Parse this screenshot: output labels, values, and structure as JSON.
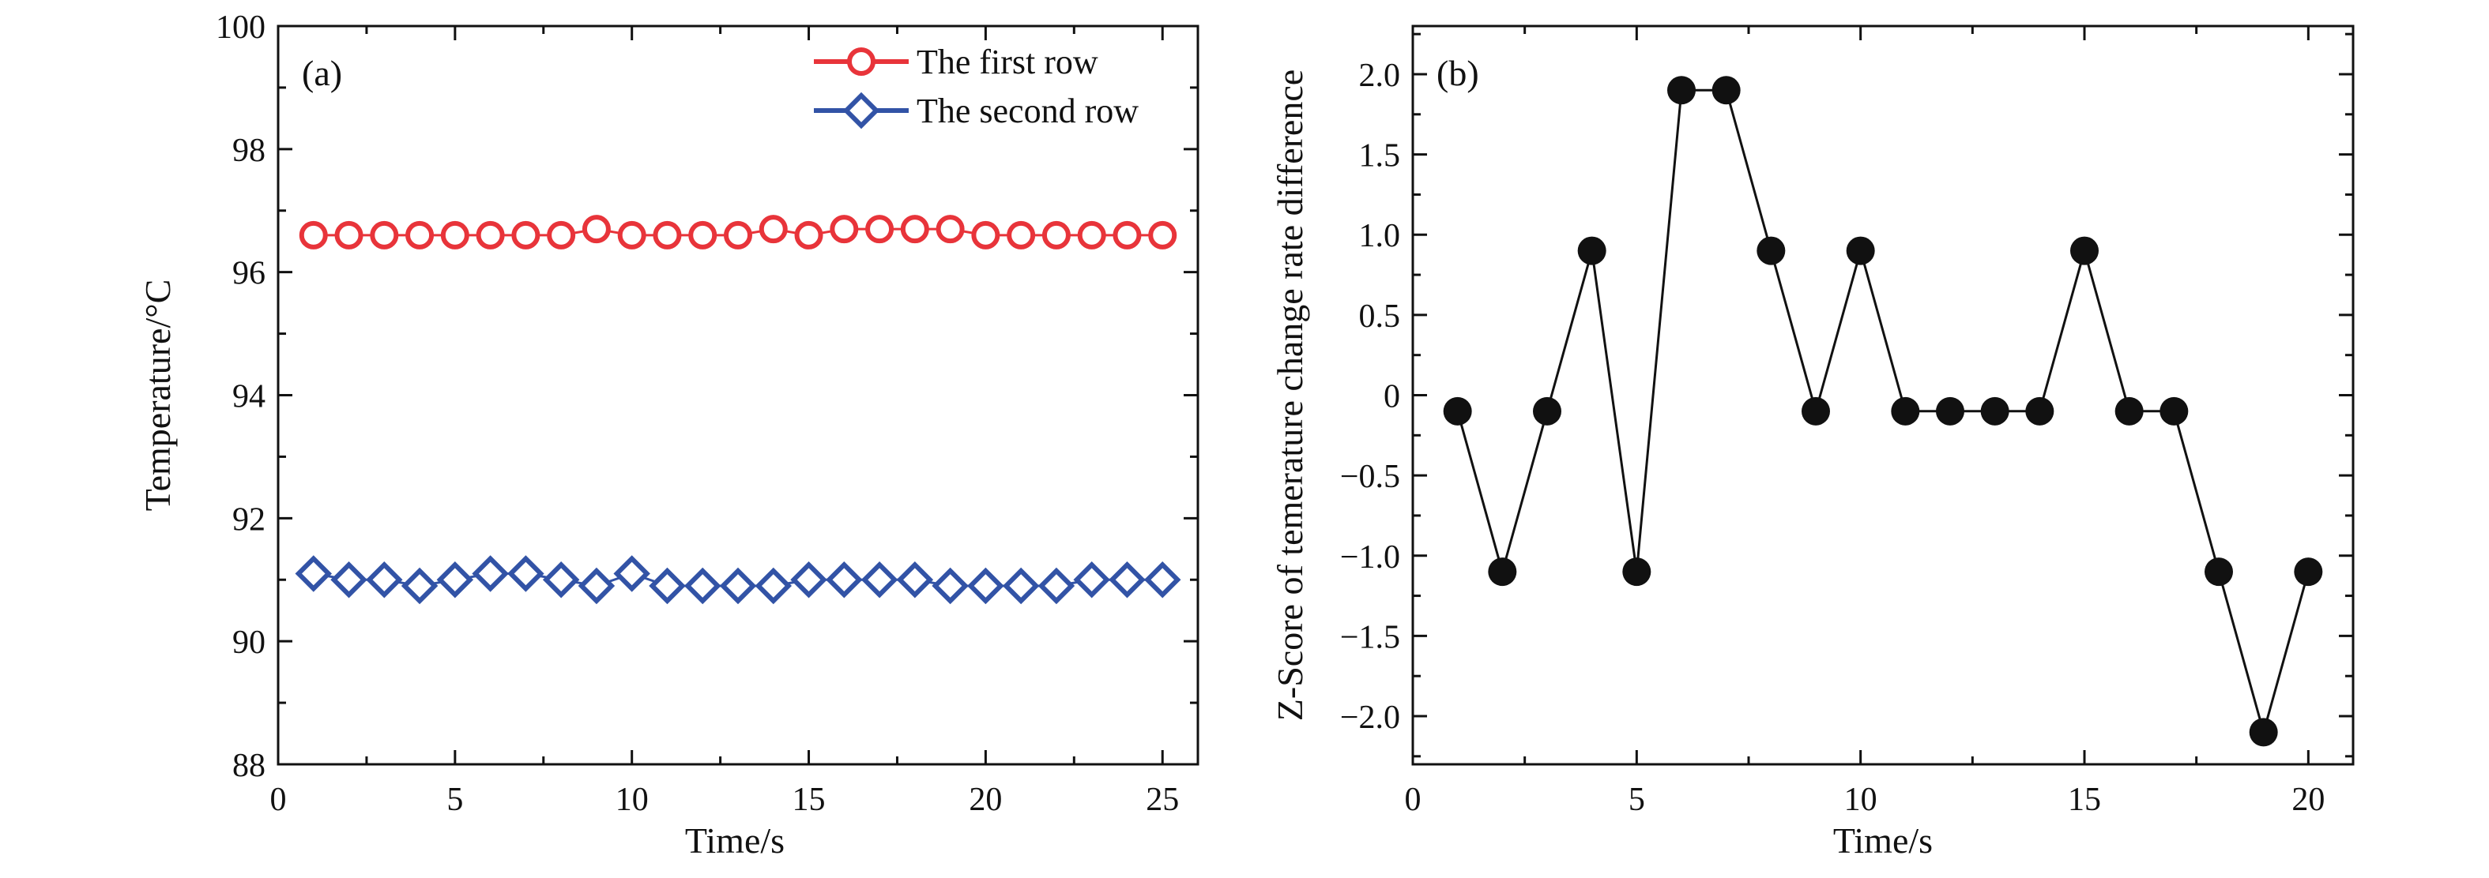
{
  "chart_data": [
    {
      "type": "line",
      "panel_label": "(a)",
      "title": "",
      "xlabel": "Time/s",
      "ylabel": "Temperature/°C",
      "xlim": [
        0,
        26
      ],
      "ylim": [
        88,
        100
      ],
      "x_ticks": [
        0,
        5,
        10,
        15,
        20,
        25
      ],
      "y_ticks": [
        88,
        90,
        92,
        94,
        96,
        98,
        100
      ],
      "grid": false,
      "legend_position": "top-right",
      "x": [
        1,
        2,
        3,
        4,
        5,
        6,
        7,
        8,
        9,
        10,
        11,
        12,
        13,
        14,
        15,
        16,
        17,
        18,
        19,
        20,
        21,
        22,
        23,
        24,
        25
      ],
      "series": [
        {
          "name": "The first row",
          "marker": "circle",
          "color": "#e8343a",
          "values": [
            96.6,
            96.6,
            96.6,
            96.6,
            96.6,
            96.6,
            96.6,
            96.6,
            96.7,
            96.6,
            96.6,
            96.6,
            96.6,
            96.7,
            96.6,
            96.7,
            96.7,
            96.7,
            96.7,
            96.6,
            96.6,
            96.6,
            96.6,
            96.6,
            96.6
          ]
        },
        {
          "name": "The second row",
          "marker": "diamond",
          "color": "#3253a6",
          "values": [
            91.1,
            91.0,
            91.0,
            90.9,
            91.0,
            91.1,
            91.1,
            91.0,
            90.9,
            91.1,
            90.9,
            90.9,
            90.9,
            90.9,
            91.0,
            91.0,
            91.0,
            91.0,
            90.9,
            90.9,
            90.9,
            90.9,
            91.0,
            91.0,
            91.0
          ]
        }
      ]
    },
    {
      "type": "line",
      "panel_label": "(b)",
      "title": "",
      "xlabel": "Time/s",
      "ylabel": "Z-Score of temerature change rate difference",
      "xlim": [
        0,
        21
      ],
      "ylim": [
        -2.3,
        2.3
      ],
      "x_ticks": [
        0,
        5,
        10,
        15,
        20
      ],
      "y_ticks": [
        -2.0,
        -1.5,
        -1.0,
        -0.5,
        0,
        0.5,
        1.0,
        1.5,
        2.0
      ],
      "y_tick_labels": [
        "−2.0",
        "−1.5",
        "−1.0",
        "−0.5",
        "0",
        "0.5",
        "1.0",
        "1.5",
        "2.0"
      ],
      "grid": false,
      "x": [
        1,
        2,
        3,
        4,
        5,
        6,
        7,
        8,
        9,
        10,
        11,
        12,
        13,
        14,
        15,
        16,
        17,
        18,
        19,
        20
      ],
      "series": [
        {
          "name": "",
          "marker": "filled-circle",
          "color": "#111111",
          "values": [
            -0.1,
            -1.1,
            -0.1,
            0.9,
            -1.1,
            1.9,
            1.9,
            0.9,
            -0.1,
            0.9,
            -0.1,
            -0.1,
            -0.1,
            -0.1,
            0.9,
            -0.1,
            -0.1,
            -1.1,
            -2.1,
            -1.1
          ]
        }
      ]
    }
  ]
}
